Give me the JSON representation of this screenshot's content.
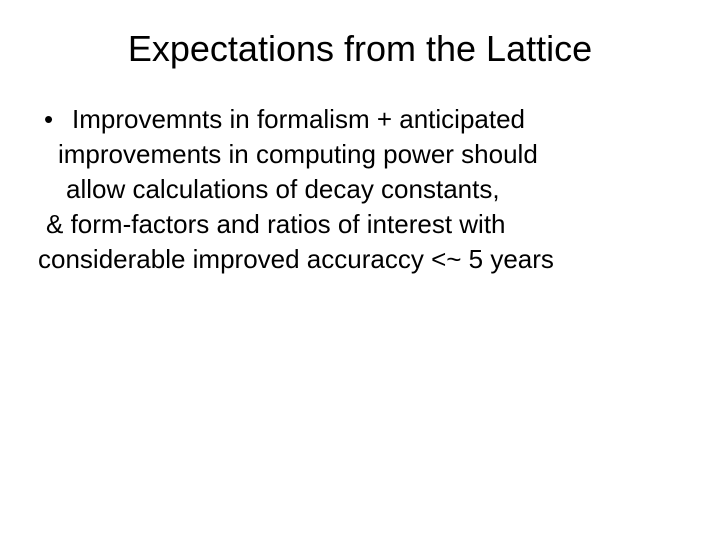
{
  "slide": {
    "title": "Expectations from the Lattice",
    "bullet_mark": "•",
    "lines": {
      "l1": "Improvemnts in formalism + anticipated",
      "l2": "improvements in computing power should",
      "l3": "allow calculations of decay constants,",
      "l4": "& form-factors and ratios of interest with",
      "l5": "considerable improved accuraccy <~ 5 years"
    }
  },
  "style": {
    "background_color": "#ffffff",
    "text_color": "#000000",
    "title_fontsize": 36,
    "body_fontsize": 26,
    "font_family": "Arial"
  }
}
